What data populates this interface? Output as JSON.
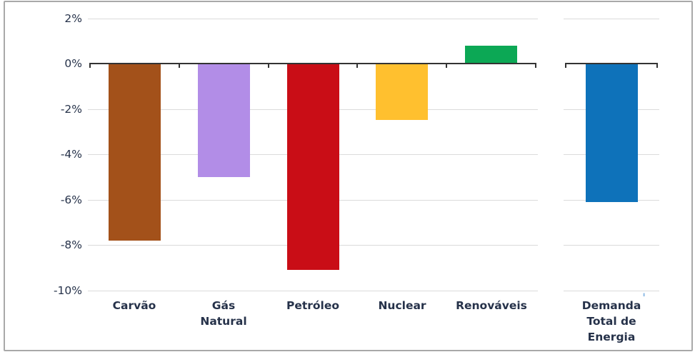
{
  "chart_data": {
    "type": "bar",
    "title": "",
    "xlabel": "",
    "ylabel": "",
    "unit": "%",
    "categories": [
      "Carvão",
      "Gás Natural",
      "Petróleo",
      "Nuclear",
      "Renováveis",
      "Demanda Total de Energia"
    ],
    "values": [
      -7.8,
      -5.0,
      -9.1,
      -2.5,
      0.8,
      -6.1
    ],
    "bar_colors": [
      "#A3511A",
      "#B28DE7",
      "#C90D16",
      "#FFC02F",
      "#0CA855",
      "#0E72BA"
    ],
    "category_label_lines": [
      [
        "Carvão"
      ],
      [
        "Gás",
        "Natural"
      ],
      [
        "Petróleo"
      ],
      [
        "Nuclear"
      ],
      [
        "Renováveis"
      ],
      [
        "Demanda",
        "Total de",
        "Energia"
      ]
    ],
    "ylim": [
      -10,
      2
    ],
    "yticks": [
      2,
      0,
      -2,
      -4,
      -6,
      -8,
      -10
    ],
    "ytick_labels": [
      "2%",
      "0%",
      "-2%",
      "-4%",
      "-6%",
      "-8%",
      "-10%"
    ],
    "grid": true,
    "legend": false,
    "last_category_separated": true
  },
  "style": {
    "text_color": "#26324a",
    "grid_color": "#dbdbdb",
    "axis_color": "#333333",
    "frame_border_color": "#a9a9a9",
    "background": "#ffffff"
  },
  "annotation": {
    "mark": "'"
  }
}
